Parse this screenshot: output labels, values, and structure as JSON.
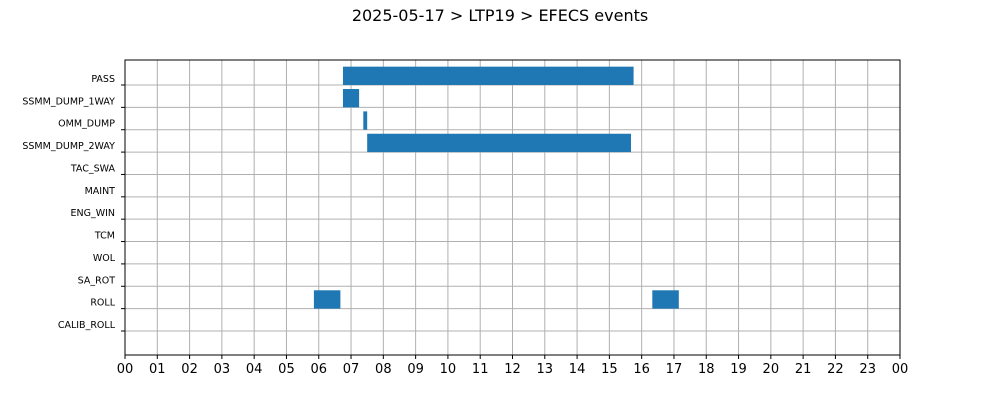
{
  "chart_data": {
    "type": "bar",
    "orientation": "horizontal-timeline",
    "title": "2025-05-17 > LTP19 > EFECS events",
    "xlabel": "",
    "ylabel": "",
    "xlim": [
      0,
      24
    ],
    "x_ticks": [
      "00",
      "01",
      "02",
      "03",
      "04",
      "05",
      "06",
      "07",
      "08",
      "09",
      "10",
      "11",
      "12",
      "13",
      "14",
      "15",
      "16",
      "17",
      "18",
      "19",
      "20",
      "21",
      "22",
      "23",
      "00"
    ],
    "categories": [
      "PASS",
      "SSMM_DUMP_1WAY",
      "OMM_DUMP",
      "SSMM_DUMP_2WAY",
      "TAC_SWA",
      "MAINT",
      "ENG_WIN",
      "TCM",
      "WOL",
      "SA_ROT",
      "ROLL",
      "CALIB_ROLL"
    ],
    "events": [
      {
        "category": "PASS",
        "start": 6.75,
        "end": 15.75
      },
      {
        "category": "SSMM_DUMP_1WAY",
        "start": 6.75,
        "end": 7.25
      },
      {
        "category": "OMM_DUMP",
        "start": 7.38,
        "end": 7.5
      },
      {
        "category": "SSMM_DUMP_2WAY",
        "start": 7.5,
        "end": 15.67
      },
      {
        "category": "ROLL",
        "start": 5.85,
        "end": 6.67
      },
      {
        "category": "ROLL",
        "start": 16.33,
        "end": 17.15
      }
    ],
    "grid": true,
    "bar_color": "#1f77b4",
    "grid_color": "#b0b0b0"
  }
}
